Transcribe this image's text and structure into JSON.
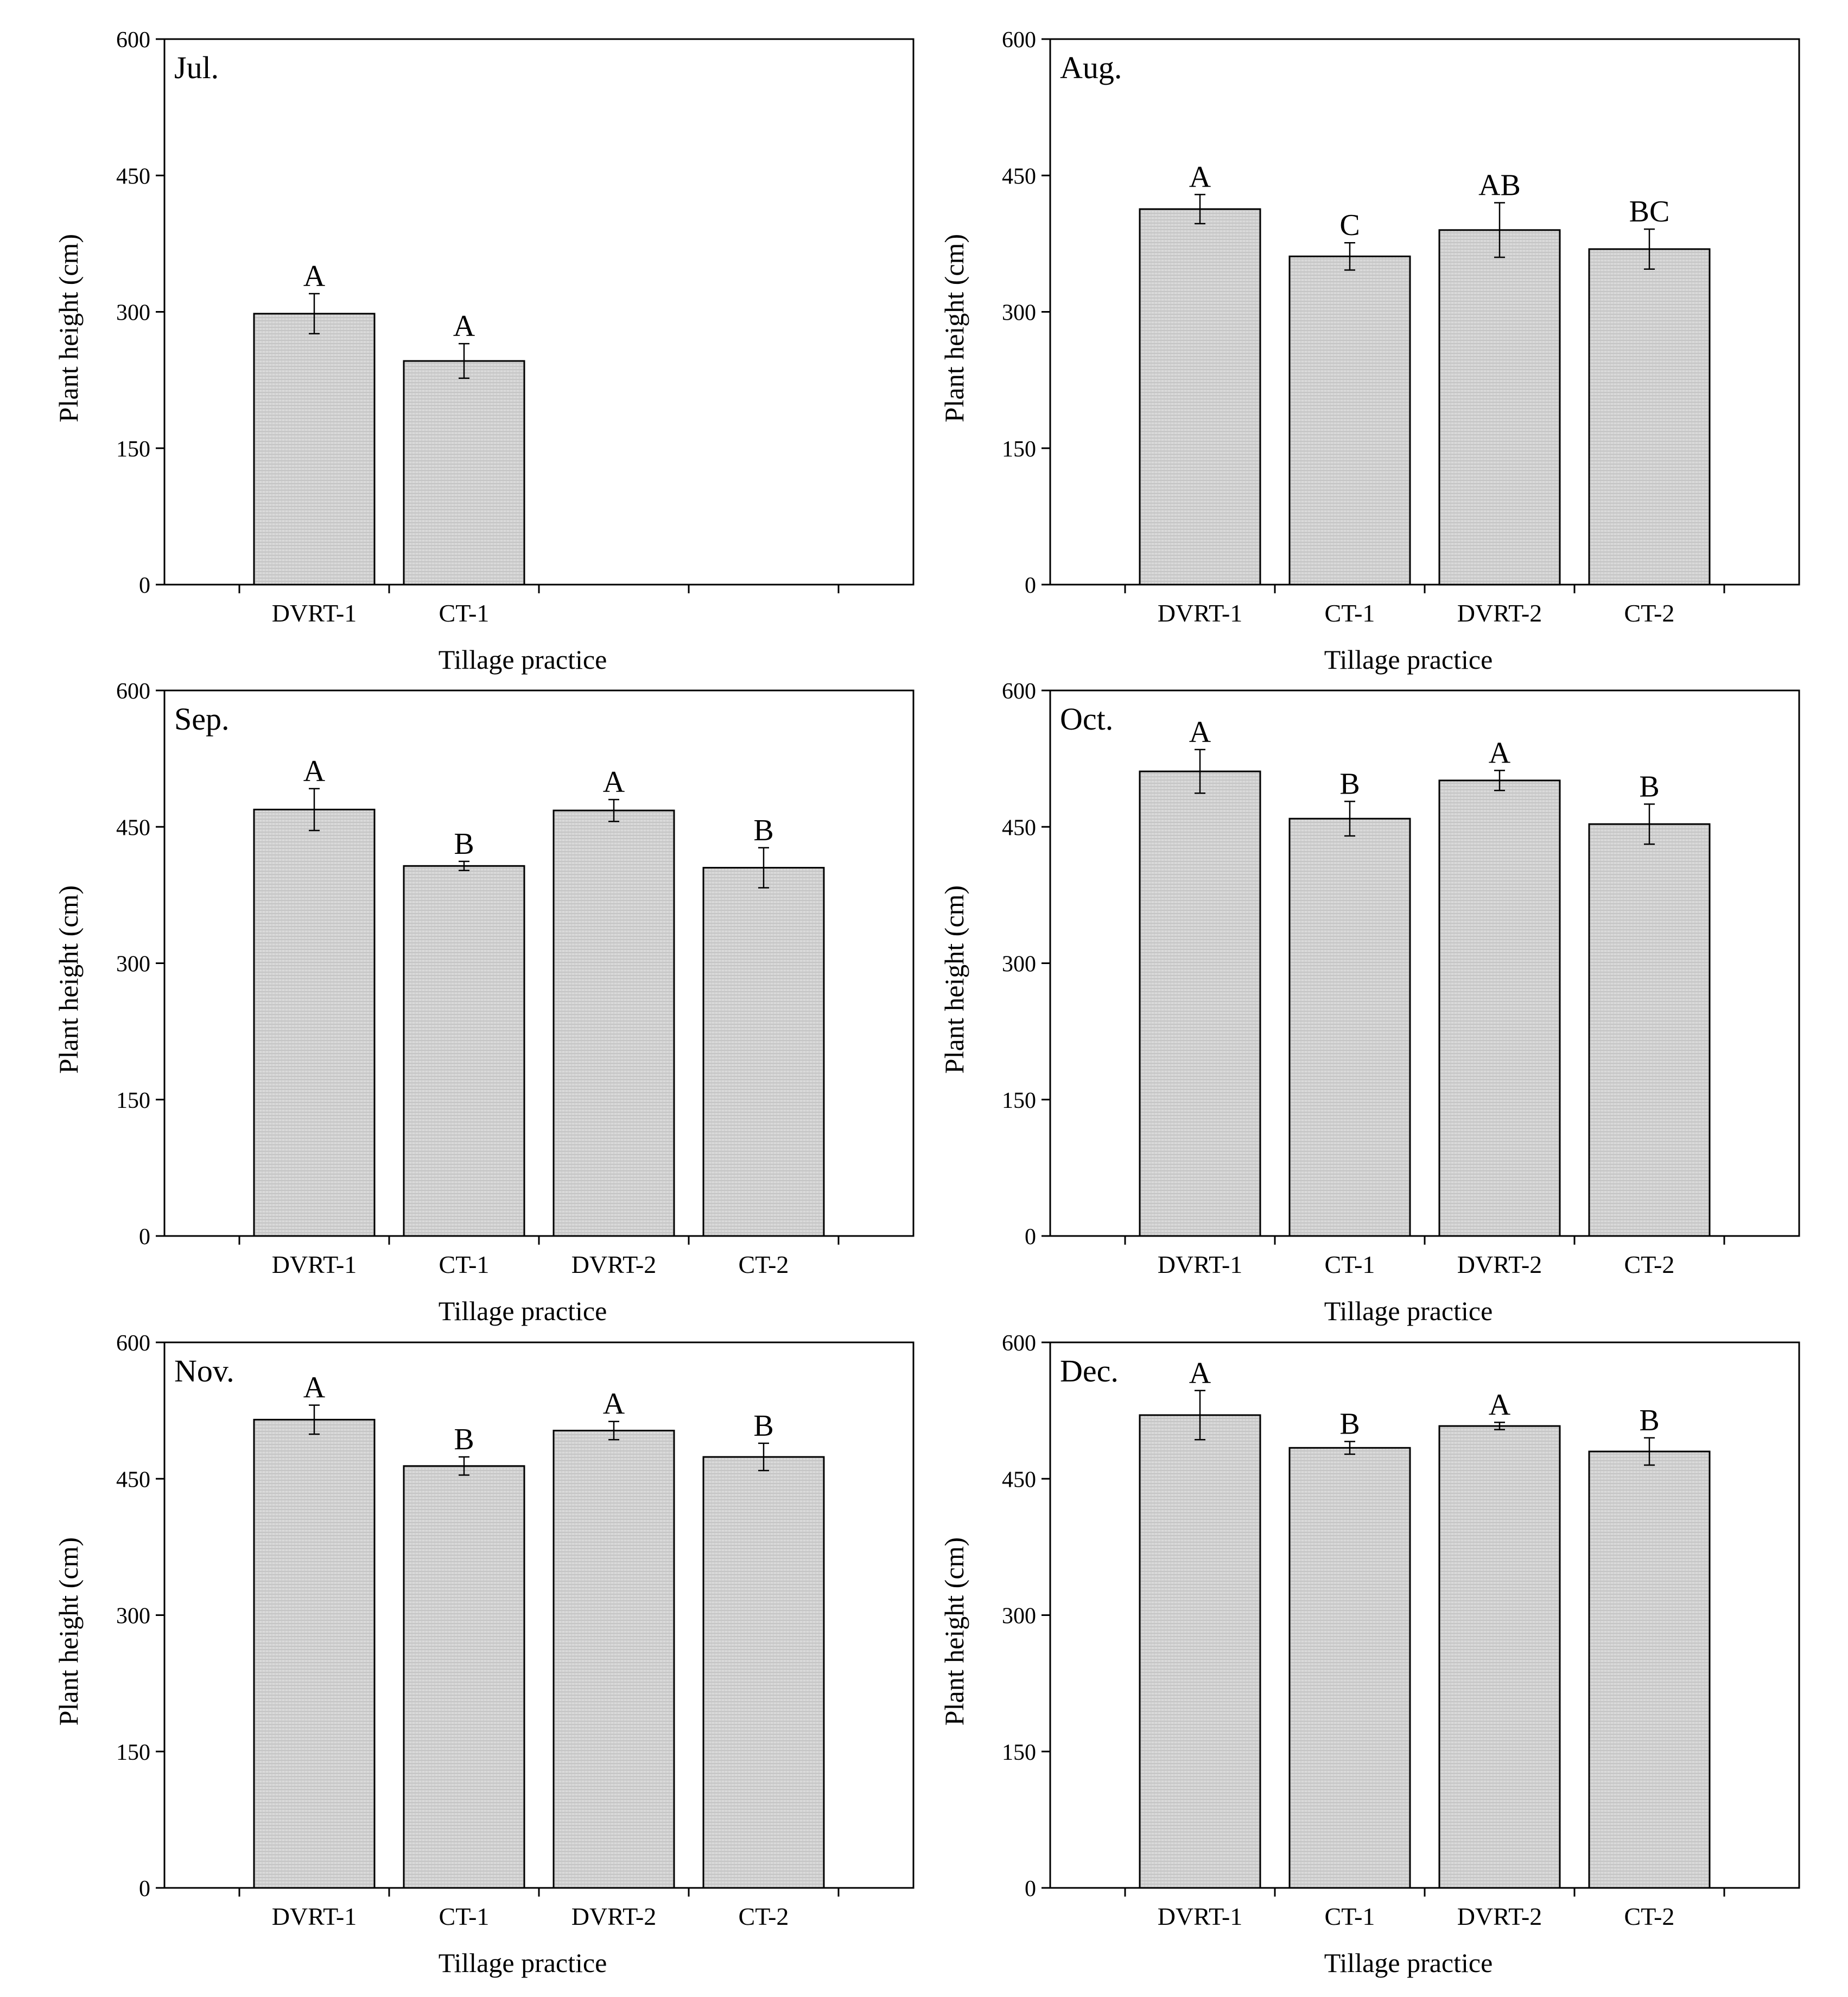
{
  "chart_data": [
    {
      "type": "bar",
      "panel_label": "Jul.",
      "ylabel": "Plant height (cm)",
      "xlabel": "Tillage practice",
      "ylim": [
        0,
        600
      ],
      "yticks": [
        0,
        150,
        300,
        450,
        600
      ],
      "slots": 4,
      "categories": [
        "DVRT-1",
        "CT-1"
      ],
      "values": [
        298,
        246
      ],
      "errors": [
        22,
        19
      ],
      "letters": [
        "A",
        "A"
      ]
    },
    {
      "type": "bar",
      "panel_label": "Aug.",
      "ylabel": "Plant height (cm)",
      "xlabel": "Tillage practice",
      "ylim": [
        0,
        600
      ],
      "yticks": [
        0,
        150,
        300,
        450,
        600
      ],
      "slots": 4,
      "categories": [
        "DVRT-1",
        "CT-1",
        "DVRT-2",
        "CT-2"
      ],
      "values": [
        413,
        361,
        390,
        369
      ],
      "errors": [
        16,
        15,
        30,
        22
      ],
      "letters": [
        "A",
        "C",
        "AB",
        "BC"
      ]
    },
    {
      "type": "bar",
      "panel_label": "Sep.",
      "ylabel": "Plant height (cm)",
      "xlabel": "Tillage practice",
      "ylim": [
        0,
        600
      ],
      "yticks": [
        0,
        150,
        300,
        450,
        600
      ],
      "slots": 4,
      "categories": [
        "DVRT-1",
        "CT-1",
        "DVRT-2",
        "CT-2"
      ],
      "values": [
        469,
        407,
        468,
        405
      ],
      "errors": [
        23,
        5,
        12,
        22
      ],
      "letters": [
        "A",
        "B",
        "A",
        "B"
      ]
    },
    {
      "type": "bar",
      "panel_label": "Oct.",
      "ylabel": "Plant height (cm)",
      "xlabel": "Tillage practice",
      "ylim": [
        0,
        600
      ],
      "yticks": [
        0,
        150,
        300,
        450,
        600
      ],
      "slots": 4,
      "categories": [
        "DVRT-1",
        "CT-1",
        "DVRT-2",
        "CT-2"
      ],
      "values": [
        511,
        459,
        501,
        453
      ],
      "errors": [
        24,
        19,
        11,
        22
      ],
      "letters": [
        "A",
        "B",
        "A",
        "B"
      ]
    },
    {
      "type": "bar",
      "panel_label": "Nov.",
      "ylabel": "Plant height (cm)",
      "xlabel": "Tillage practice",
      "ylim": [
        0,
        600
      ],
      "yticks": [
        0,
        150,
        300,
        450,
        600
      ],
      "slots": 4,
      "categories": [
        "DVRT-1",
        "CT-1",
        "DVRT-2",
        "CT-2"
      ],
      "values": [
        515,
        464,
        503,
        474
      ],
      "errors": [
        16,
        10,
        10,
        15
      ],
      "letters": [
        "A",
        "B",
        "A",
        "B"
      ]
    },
    {
      "type": "bar",
      "panel_label": "Dec.",
      "ylabel": "Plant height (cm)",
      "xlabel": "Tillage practice",
      "ylim": [
        0,
        600
      ],
      "yticks": [
        0,
        150,
        300,
        450,
        600
      ],
      "slots": 4,
      "categories": [
        "DVRT-1",
        "CT-1",
        "DVRT-2",
        "CT-2"
      ],
      "values": [
        520,
        484,
        508,
        480
      ],
      "errors": [
        27,
        7,
        4,
        15
      ],
      "letters": [
        "A",
        "B",
        "A",
        "B"
      ]
    }
  ],
  "colors": {
    "bar_fill": "#d6d6d6",
    "bar_stroke": "#000000",
    "axis": "#000000"
  }
}
